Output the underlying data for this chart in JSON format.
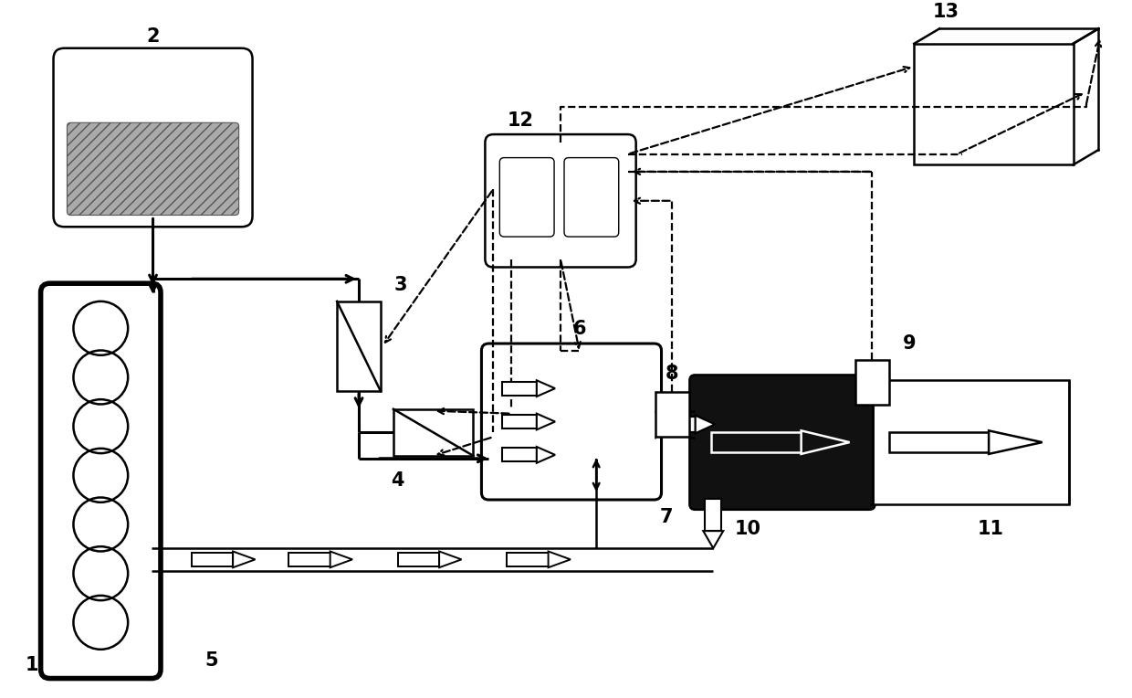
{
  "bg": "#ffffff",
  "lc": "#000000",
  "fs": 15,
  "fw": "bold",
  "lw_thick": 2.2,
  "lw_med": 1.8,
  "lw_thin": 1.3,
  "lw_dash": 1.6
}
